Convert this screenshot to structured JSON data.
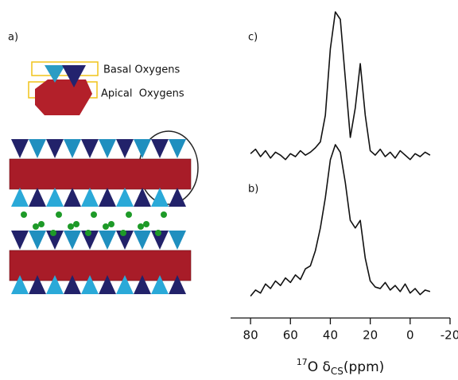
{
  "structure_panel": {
    "label": "a)",
    "basal_label": "Basal Oxygens",
    "apical_label": "Apical  Oxygens"
  },
  "chart_data": {
    "type": "line",
    "x_label": {
      "isotope": "17",
      "nucleus": "O δ",
      "subscript": "CS",
      "unit": "(ppm)"
    },
    "x": [
      80,
      77.5,
      75,
      72.5,
      70,
      67.5,
      65,
      62.5,
      60,
      57.5,
      55,
      52.5,
      50,
      47.5,
      45,
      42.5,
      40,
      37.5,
      35,
      32.5,
      30,
      27.5,
      25,
      22.5,
      20,
      17.5,
      15,
      12.5,
      10,
      7.5,
      5,
      2.5,
      0,
      -2.5,
      -5,
      -7.5,
      -10
    ],
    "xlim": [
      90,
      -20
    ],
    "xticks": [
      80,
      60,
      40,
      20,
      0,
      -20
    ],
    "ylim": [
      -0.05,
      1.0
    ],
    "series": [
      {
        "name": "c)",
        "color": "#111111",
        "values": [
          0.04,
          0.07,
          0.02,
          0.06,
          0.01,
          0.05,
          0.03,
          0.0,
          0.04,
          0.02,
          0.06,
          0.03,
          0.05,
          0.08,
          0.12,
          0.3,
          0.75,
          1.0,
          0.95,
          0.55,
          0.15,
          0.35,
          0.65,
          0.3,
          0.06,
          0.03,
          0.07,
          0.02,
          0.05,
          0.01,
          0.06,
          0.03,
          0.0,
          0.04,
          0.02,
          0.05,
          0.03
        ]
      },
      {
        "name": "b)",
        "color": "#111111",
        "values": [
          0.0,
          0.04,
          0.02,
          0.08,
          0.05,
          0.1,
          0.07,
          0.12,
          0.09,
          0.14,
          0.11,
          0.18,
          0.2,
          0.3,
          0.45,
          0.65,
          0.9,
          1.0,
          0.95,
          0.75,
          0.5,
          0.45,
          0.5,
          0.25,
          0.1,
          0.06,
          0.05,
          0.09,
          0.04,
          0.07,
          0.03,
          0.08,
          0.02,
          0.05,
          0.01,
          0.04,
          0.03
        ]
      }
    ]
  }
}
